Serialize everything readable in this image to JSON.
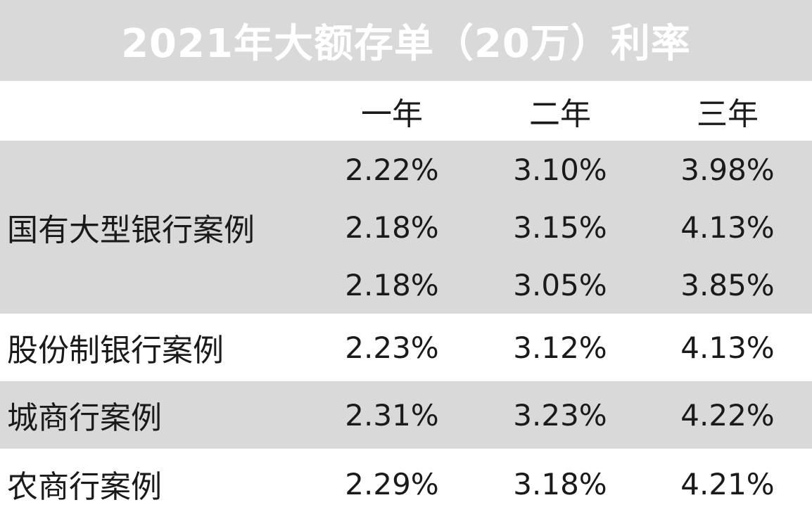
{
  "title": "2021年大额存单（20万）利率",
  "table": {
    "columns": [
      "一年",
      "二年",
      "三年"
    ],
    "groups": [
      {
        "label": "国有大型银行案例",
        "rows": [
          [
            "2.22%",
            "3.10%",
            "3.98%"
          ],
          [
            "2.18%",
            "3.15%",
            "4.13%"
          ],
          [
            "2.18%",
            "3.05%",
            "3.85%"
          ]
        ]
      },
      {
        "label": "股份制银行案例",
        "rows": [
          [
            "2.23%",
            "3.12%",
            "4.13%"
          ]
        ]
      },
      {
        "label": "城商行案例",
        "rows": [
          [
            "2.31%",
            "3.23%",
            "4.22%"
          ]
        ]
      },
      {
        "label": "农商行案例",
        "rows": [
          [
            "2.29%",
            "3.18%",
            "4.21%"
          ]
        ]
      }
    ]
  }
}
